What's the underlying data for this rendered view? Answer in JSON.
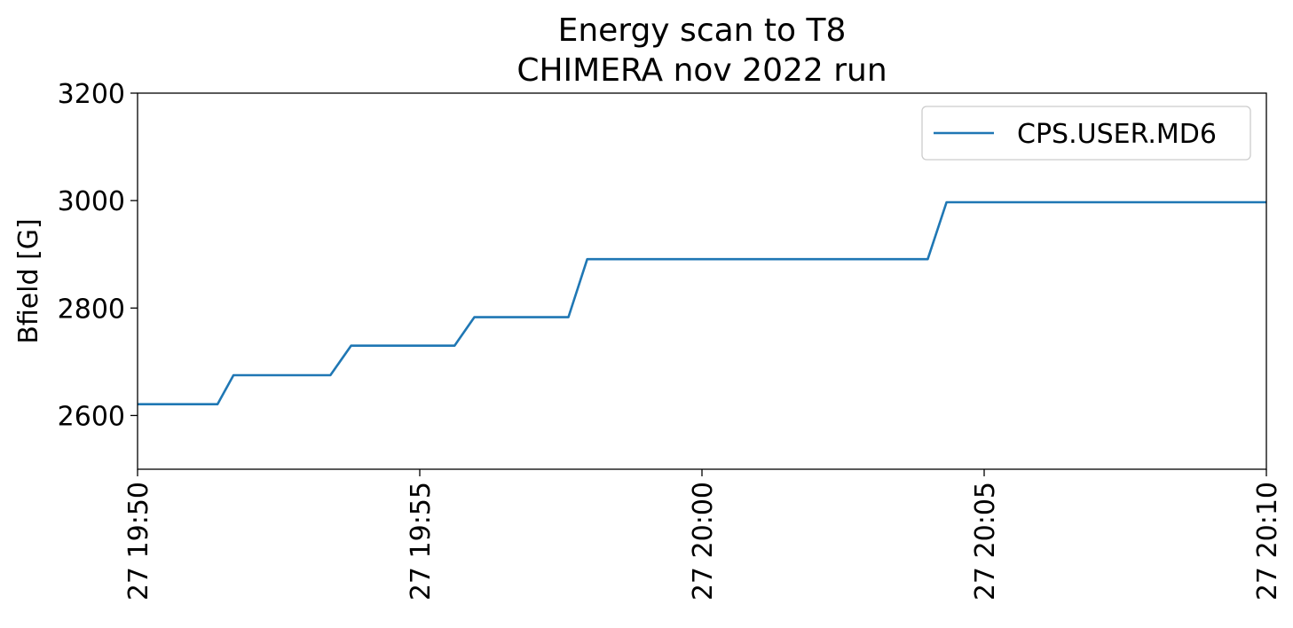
{
  "chart_data": {
    "type": "line",
    "title": "Energy scan to T8",
    "subtitle": "CHIMERA nov 2022 run",
    "xlabel": "",
    "ylabel": "Bfield [G]",
    "xlim": [
      "2022-11-27 19:50",
      "2022-11-27 20:10"
    ],
    "ylim": [
      2500,
      3200
    ],
    "x_ticks": [
      "2022-11-27 19:50",
      "2022-11-27 19:55",
      "2022-11-27 20:00",
      "2022-11-27 20:05",
      "2022-11-27 20:10"
    ],
    "x_tick_labels": [
      "27 19:50",
      "27 19:55",
      "27 20:00",
      "27 20:05",
      "27 20:10"
    ],
    "y_ticks": [
      2600,
      2800,
      3000,
      3200
    ],
    "y_tick_labels": [
      "2600",
      "2800",
      "3000",
      "3200"
    ],
    "grid": false,
    "legend_position": "upper right",
    "series": [
      {
        "name": "CPS.USER.MD6",
        "color": "#1f77b4",
        "x": [
          "2022-11-27 19:50:00",
          "2022-11-27 19:51:25",
          "2022-11-27 19:51:42",
          "2022-11-27 19:53:25",
          "2022-11-27 19:53:47",
          "2022-11-27 19:55:37",
          "2022-11-27 19:55:58",
          "2022-11-27 19:57:38",
          "2022-11-27 19:57:58",
          "2022-11-27 20:04:00",
          "2022-11-27 20:04:20",
          "2022-11-27 20:10:00"
        ],
        "y": [
          2621,
          2621,
          2675,
          2675,
          2730,
          2730,
          2783,
          2783,
          2891,
          2891,
          2997,
          2997
        ]
      }
    ]
  }
}
